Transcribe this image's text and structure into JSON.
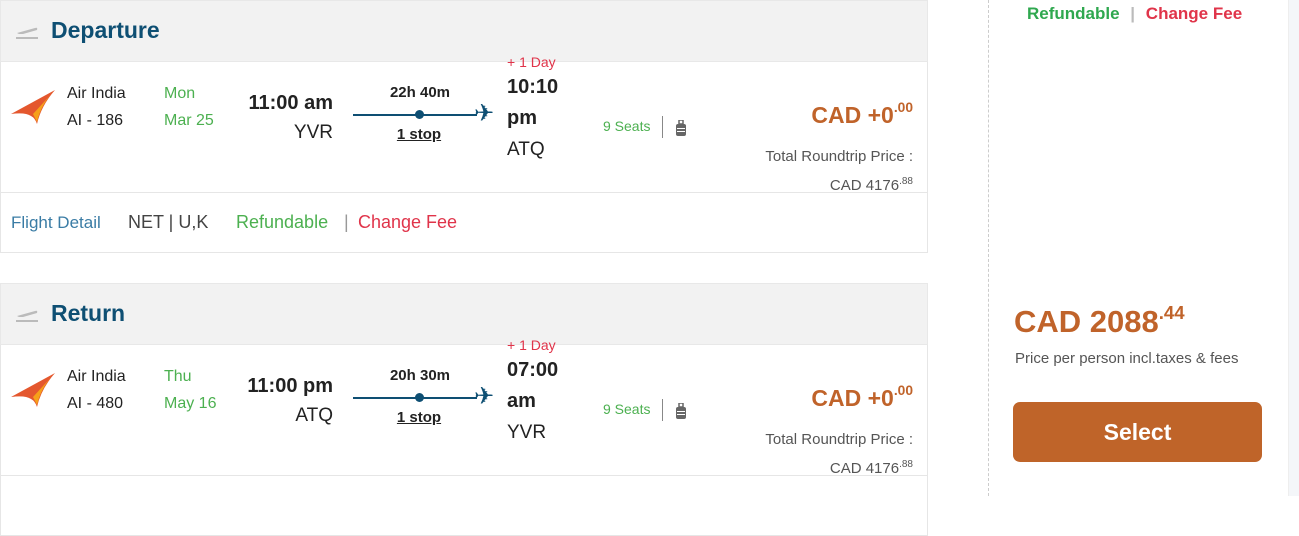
{
  "legs": [
    {
      "title": "Departure",
      "airline": "Air India",
      "flight": "AI - 186",
      "day": "Mon",
      "date": "Mar 25",
      "dep_time": "11:00 am",
      "dep_airport": "YVR",
      "duration": "22h 40m",
      "stops": "1 stop",
      "day_offset": "+ 1 Day",
      "arr_time_1": "10:10",
      "arr_time_2": "pm",
      "arr_airport": "ATQ",
      "seats": "9 Seats",
      "price_main": "CAD +0",
      "price_cents": ".00",
      "total_label": "Total Roundtrip Price :",
      "total_main": "CAD 4176",
      "total_cents": ".88"
    },
    {
      "title": "Return",
      "airline": "Air India",
      "flight": "AI - 480",
      "day": "Thu",
      "date": "May 16",
      "dep_time": "11:00 pm",
      "dep_airport": "ATQ",
      "duration": "20h 30m",
      "stops": "1 stop",
      "day_offset": "+ 1 Day",
      "arr_time_1": "07:00",
      "arr_time_2": "am",
      "arr_airport": "YVR",
      "seats": "9 Seats",
      "price_main": "CAD +0",
      "price_cents": ".00",
      "total_label": "Total Roundtrip Price :",
      "total_main": "CAD 4176",
      "total_cents": ".88"
    }
  ],
  "footer": {
    "flight_detail": "Flight Detail",
    "fare_type": "NET | U,K",
    "refundable": "Refundable",
    "divider": "|",
    "change_fee": "Change Fee"
  },
  "side": {
    "refundable": "Refundable",
    "divider": "|",
    "change_fee": "Change Fee",
    "price_main": "CAD 2088",
    "price_cents": ".44",
    "price_note": "Price per person incl.taxes & fees",
    "select": "Select"
  },
  "colors": {
    "accent": "#c0632a",
    "navy": "#0e4f73",
    "green": "#4cb050",
    "red": "#e0344a"
  }
}
